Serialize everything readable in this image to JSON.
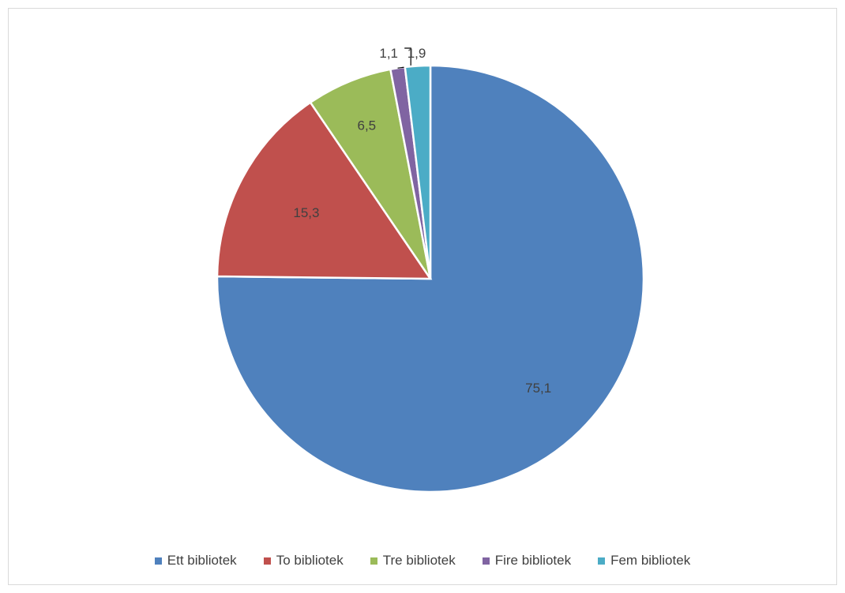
{
  "chart_data": {
    "type": "pie",
    "title": "",
    "legend_position": "bottom",
    "start_angle_deg": 0,
    "direction": "clockwise",
    "slices": [
      {
        "name": "Ett bibliotek",
        "value": 75.1,
        "label": "75,1",
        "color": "#4F81BD"
      },
      {
        "name": "To bibliotek",
        "value": 15.3,
        "label": "15,3",
        "color": "#C0504D"
      },
      {
        "name": "Tre bibliotek",
        "value": 6.5,
        "label": "6,5",
        "color": "#9BBB59"
      },
      {
        "name": "Fire bibliotek",
        "value": 1.1,
        "label": "1,1",
        "color": "#8064A2"
      },
      {
        "name": "Fem bibliotek",
        "value": 1.9,
        "label": "1,9",
        "color": "#4BACC6"
      }
    ]
  }
}
